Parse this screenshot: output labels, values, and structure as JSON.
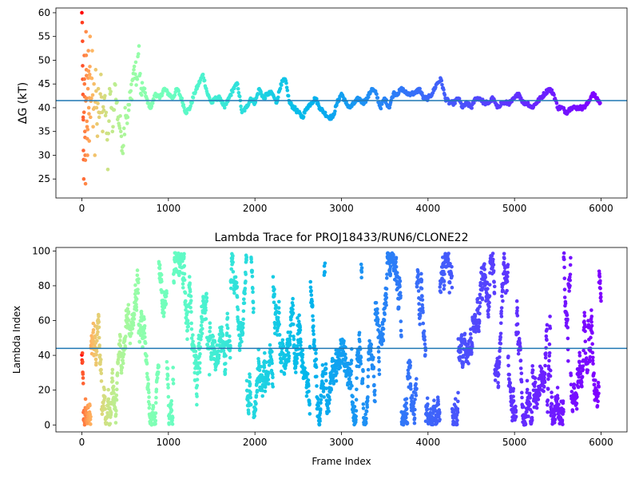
{
  "chart_data": [
    {
      "type": "scatter",
      "title": "",
      "xlabel": "",
      "ylabel": "ΔG (kT)",
      "xlim": [
        -300,
        6300
      ],
      "ylim": [
        21,
        61
      ],
      "xticks": [
        "0",
        "1000",
        "2000",
        "3000",
        "4000",
        "5000",
        "6000"
      ],
      "yticks": [
        "25",
        "30",
        "35",
        "40",
        "45",
        "50",
        "55",
        "60"
      ],
      "hline": 41.5,
      "hline_color": "#1f77b4",
      "colormap": "rainbow (red at frame 0 → violet at frame 6000)",
      "series": [
        {
          "points": [
            [
              0,
              60
            ],
            [
              8,
              54
            ],
            [
              10,
              46
            ],
            [
              15,
              38
            ],
            [
              18,
              31
            ],
            [
              22,
              25
            ],
            [
              28,
              51
            ],
            [
              30,
              45
            ],
            [
              35,
              35
            ],
            [
              38,
              30
            ],
            [
              42,
              24
            ],
            [
              48,
              56
            ],
            [
              52,
              48
            ],
            [
              55,
              42
            ],
            [
              60,
              36
            ],
            [
              65,
              30
            ],
            [
              70,
              44
            ],
            [
              75,
              52
            ],
            [
              80,
              40
            ],
            [
              85,
              33
            ],
            [
              90,
              47
            ],
            [
              95,
              55
            ],
            [
              100,
              38
            ],
            [
              110,
              42
            ],
            [
              120,
              52
            ],
            [
              130,
              36
            ],
            [
              140,
              45
            ],
            [
              150,
              30
            ],
            [
              160,
              48
            ],
            [
              170,
              40
            ],
            [
              180,
              34
            ],
            [
              190,
              44
            ],
            [
              200,
              38
            ],
            [
              220,
              47
            ],
            [
              240,
              35
            ],
            [
              260,
              42
            ],
            [
              280,
              39
            ],
            [
              300,
              27
            ],
            [
              320,
              44
            ],
            [
              340,
              40
            ],
            [
              360,
              36
            ],
            [
              380,
              45
            ],
            [
              400,
              41
            ],
            [
              420,
              38
            ],
            [
              450,
              35
            ],
            [
              480,
              32
            ],
            [
              500,
              40
            ],
            [
              530,
              38
            ],
            [
              560,
              42
            ],
            [
              600,
              48
            ],
            [
              640,
              46
            ],
            [
              660,
              53
            ],
            [
              680,
              43
            ],
            [
              720,
              44
            ],
            [
              760,
              41
            ],
            [
              800,
              40
            ],
            [
              850,
              43
            ],
            [
              900,
              42
            ],
            [
              950,
              44
            ],
            [
              1000,
              43
            ],
            [
              1050,
              42
            ],
            [
              1100,
              44
            ],
            [
              1150,
              42
            ],
            [
              1200,
              39
            ],
            [
              1250,
              40
            ],
            [
              1300,
              43
            ],
            [
              1350,
              45
            ],
            [
              1400,
              47
            ],
            [
              1450,
              43
            ],
            [
              1500,
              41
            ],
            [
              1550,
              42
            ],
            [
              1600,
              42
            ],
            [
              1650,
              40
            ],
            [
              1700,
              42
            ],
            [
              1750,
              44
            ],
            [
              1800,
              45
            ],
            [
              1850,
              39
            ],
            [
              1900,
              40
            ],
            [
              1950,
              42
            ],
            [
              2000,
              41
            ],
            [
              2050,
              44
            ],
            [
              2100,
              42
            ],
            [
              2150,
              43
            ],
            [
              2200,
              43
            ],
            [
              2250,
              41
            ],
            [
              2300,
              45
            ],
            [
              2350,
              46
            ],
            [
              2400,
              41
            ],
            [
              2450,
              40
            ],
            [
              2500,
              39
            ],
            [
              2550,
              38
            ],
            [
              2600,
              40
            ],
            [
              2650,
              41
            ],
            [
              2700,
              42
            ],
            [
              2750,
              40
            ],
            [
              2800,
              39
            ],
            [
              2850,
              38
            ],
            [
              2900,
              38
            ],
            [
              2950,
              41
            ],
            [
              3000,
              43
            ],
            [
              3050,
              41
            ],
            [
              3100,
              40
            ],
            [
              3150,
              41
            ],
            [
              3200,
              42
            ],
            [
              3250,
              41
            ],
            [
              3300,
              42
            ],
            [
              3350,
              44
            ],
            [
              3400,
              43
            ],
            [
              3450,
              40
            ],
            [
              3500,
              42
            ],
            [
              3550,
              40
            ],
            [
              3600,
              43
            ],
            [
              3650,
              43
            ],
            [
              3700,
              44
            ],
            [
              3750,
              43
            ],
            [
              3800,
              43
            ],
            [
              3850,
              43
            ],
            [
              3900,
              44
            ],
            [
              3950,
              42
            ],
            [
              4000,
              42
            ],
            [
              4050,
              43
            ],
            [
              4100,
              45
            ],
            [
              4150,
              46
            ],
            [
              4200,
              42
            ],
            [
              4250,
              41
            ],
            [
              4300,
              41
            ],
            [
              4350,
              42
            ],
            [
              4400,
              40
            ],
            [
              4450,
              41
            ],
            [
              4500,
              40
            ],
            [
              4550,
              42
            ],
            [
              4600,
              42
            ],
            [
              4650,
              41
            ],
            [
              4700,
              41
            ],
            [
              4750,
              42
            ],
            [
              4800,
              40
            ],
            [
              4850,
              41
            ],
            [
              4900,
              41
            ],
            [
              4950,
              41
            ],
            [
              5000,
              42
            ],
            [
              5050,
              43
            ],
            [
              5100,
              41
            ],
            [
              5150,
              41
            ],
            [
              5200,
              40
            ],
            [
              5250,
              41
            ],
            [
              5300,
              42
            ],
            [
              5350,
              43
            ],
            [
              5400,
              44
            ],
            [
              5450,
              43
            ],
            [
              5500,
              40
            ],
            [
              5550,
              40
            ],
            [
              5600,
              39
            ],
            [
              5650,
              40
            ],
            [
              5700,
              40
            ],
            [
              5750,
              40
            ],
            [
              5800,
              40
            ],
            [
              5850,
              41
            ],
            [
              5900,
              43
            ],
            [
              5950,
              42
            ],
            [
              5990,
              41
            ]
          ]
        }
      ]
    },
    {
      "type": "scatter",
      "title": "Lambda Trace for PROJ18433/RUN6/CLONE22",
      "xlabel": "Frame Index",
      "ylabel": "Lambda Index",
      "xlim": [
        -300,
        6300
      ],
      "ylim": [
        -4,
        102
      ],
      "xticks": [
        "0",
        "1000",
        "2000",
        "3000",
        "4000",
        "5000",
        "6000"
      ],
      "yticks": [
        "0",
        "20",
        "40",
        "60",
        "80",
        "100"
      ],
      "hline": 44,
      "hline_color": "#1f77b4",
      "colormap": "rainbow (red at frame 0 → violet at frame 6000)",
      "description_of_points": "dense random walk of lambda index (0-99) over frames 0-6000; roughly uniform coverage with vertical streak structure",
      "frame_range": [
        0,
        6000
      ],
      "lambda_range": [
        0,
        99
      ]
    }
  ]
}
